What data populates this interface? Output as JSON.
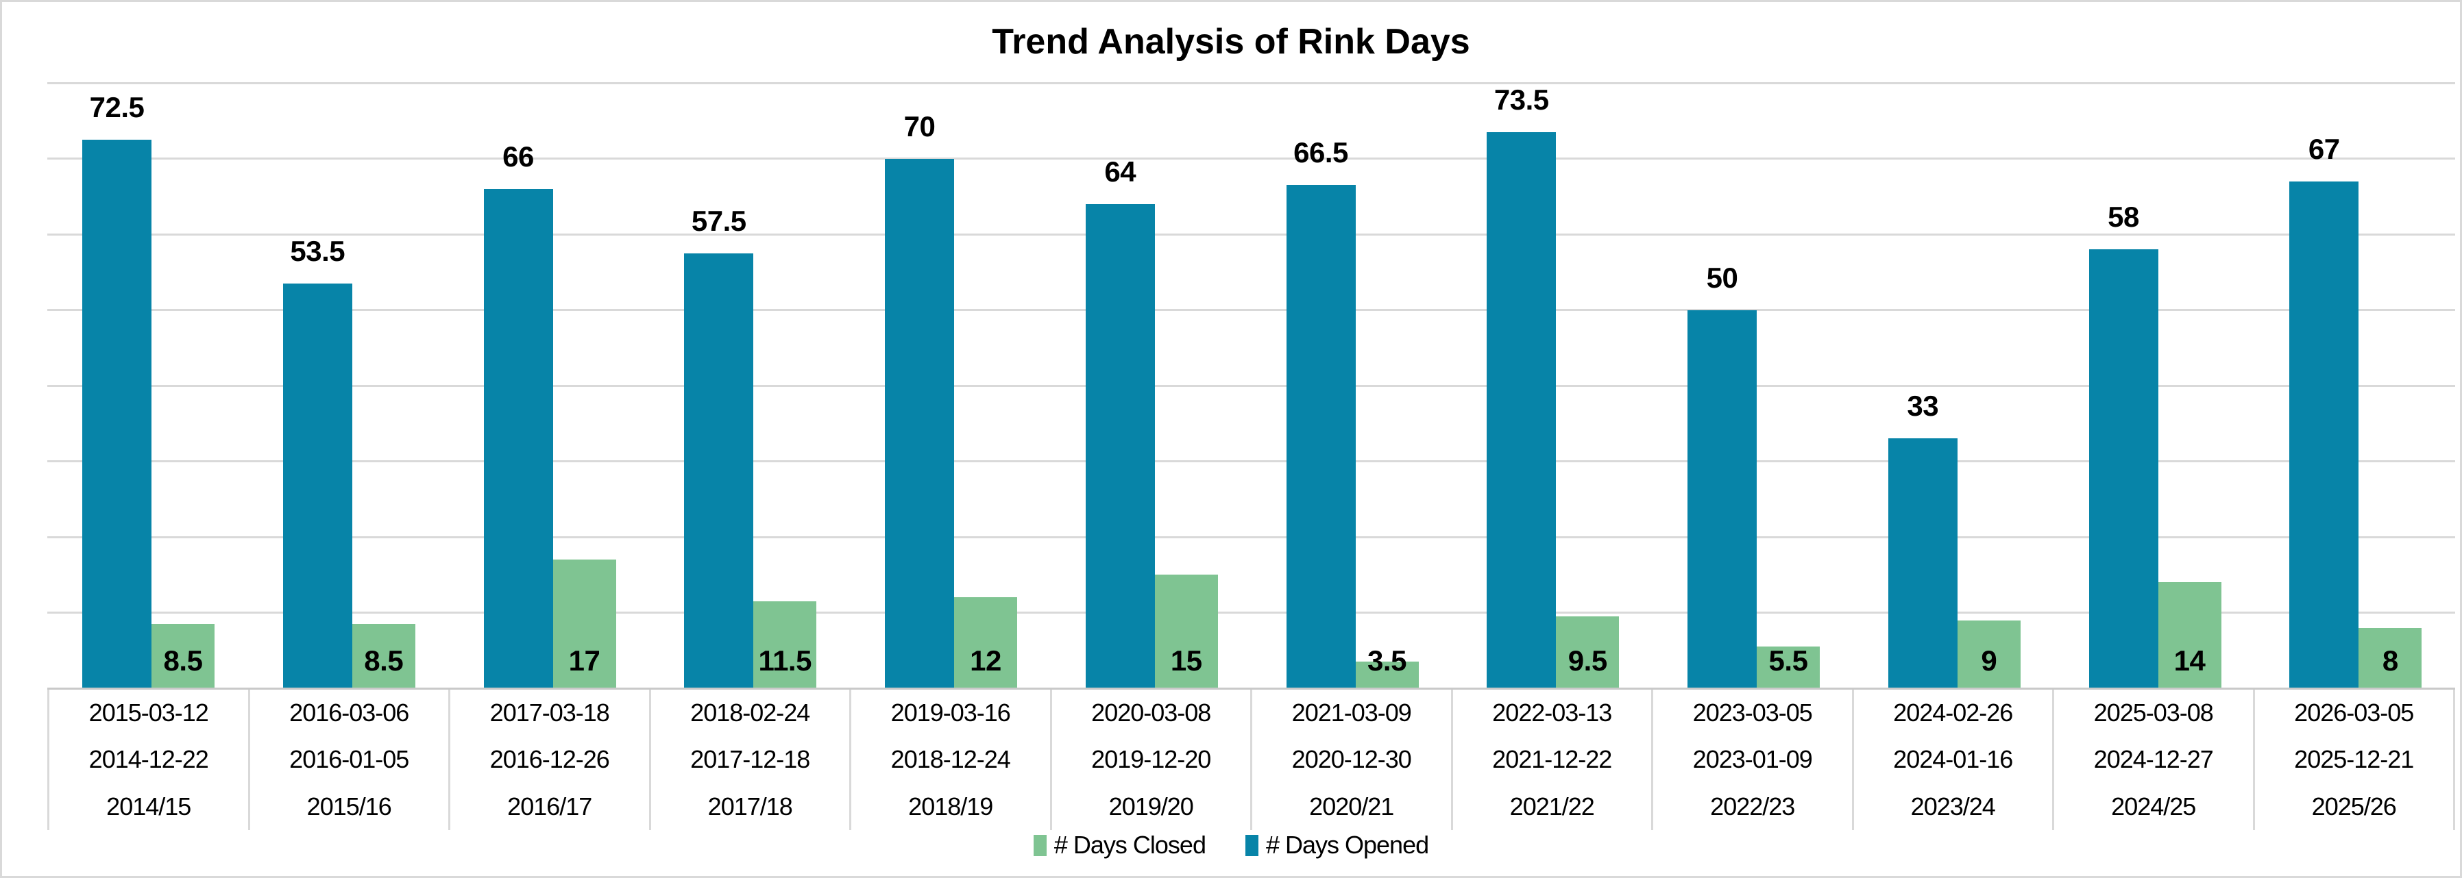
{
  "title": "Trend Analysis of Rink Days",
  "colors": {
    "opened": "#0784a8",
    "closed": "#7fc492",
    "gridline": "#d9d9d9",
    "axis_line": "#c9c9c9",
    "table_divider": "#d9d9d9",
    "frame_border": "#d9d9d9",
    "label_text": "#000000",
    "background": "#ffffff"
  },
  "legend": {
    "position": "bottom",
    "items": [
      {
        "key": "closed",
        "label": "# Days Closed"
      },
      {
        "key": "opened",
        "label": "# Days Opened"
      }
    ]
  },
  "chart_data": {
    "type": "bar",
    "title": "Trend Analysis of Rink Days",
    "xlabel": "",
    "ylabel": "",
    "ylim": [
      0,
      80
    ],
    "gridline_step": 10,
    "grid": true,
    "y_axis_tick_labels_visible": false,
    "legend_position": "bottom",
    "series_order_left_to_right": [
      "opened",
      "closed"
    ],
    "categories": [
      {
        "end_date": "2015-03-12",
        "start_date": "2014-12-22",
        "season": "2014/15"
      },
      {
        "end_date": "2016-03-06",
        "start_date": "2016-01-05",
        "season": "2015/16"
      },
      {
        "end_date": "2017-03-18",
        "start_date": "2016-12-26",
        "season": "2016/17"
      },
      {
        "end_date": "2018-02-24",
        "start_date": "2017-12-18",
        "season": "2017/18"
      },
      {
        "end_date": "2019-03-16",
        "start_date": "2018-12-24",
        "season": "2018/19"
      },
      {
        "end_date": "2020-03-08",
        "start_date": "2019-12-20",
        "season": "2019/20"
      },
      {
        "end_date": "2021-03-09",
        "start_date": "2020-12-30",
        "season": "2020/21"
      },
      {
        "end_date": "2022-03-13",
        "start_date": "2021-12-22",
        "season": "2021/22"
      },
      {
        "end_date": "2023-03-05",
        "start_date": "2023-01-09",
        "season": "2022/23"
      },
      {
        "end_date": "2024-02-26",
        "start_date": "2024-01-16",
        "season": "2023/24"
      },
      {
        "end_date": "2025-03-08",
        "start_date": "2024-12-27",
        "season": "2024/25"
      },
      {
        "end_date": "2026-03-05",
        "start_date": "2025-12-21",
        "season": "2025/26"
      }
    ],
    "series": [
      {
        "name": "# Days Opened",
        "key": "opened",
        "values": [
          72.5,
          53.5,
          66,
          57.5,
          70,
          64,
          66.5,
          73.5,
          50,
          33,
          58,
          67
        ]
      },
      {
        "name": "# Days Closed",
        "key": "closed",
        "values": [
          8.5,
          8.5,
          17,
          11.5,
          12,
          15,
          3.5,
          9.5,
          5.5,
          9,
          14,
          8
        ]
      }
    ]
  }
}
